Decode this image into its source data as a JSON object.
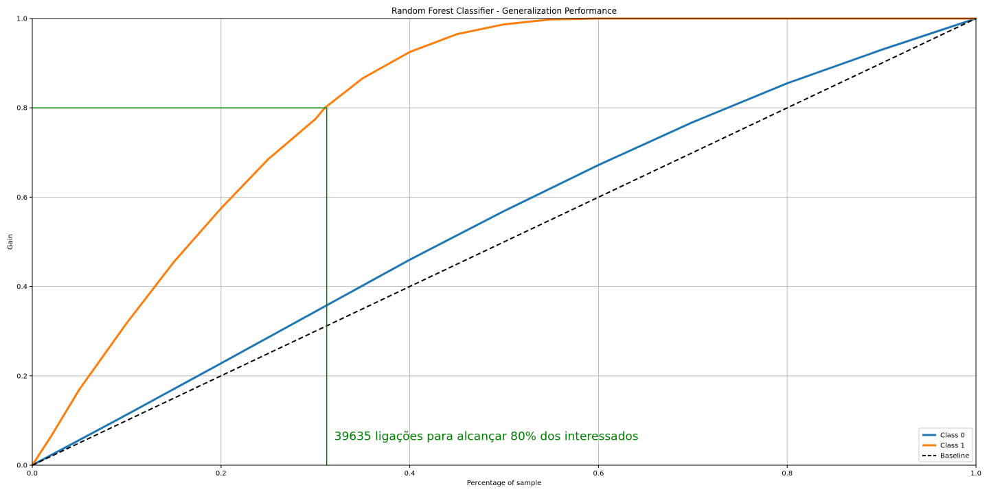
{
  "chart_data": {
    "type": "line",
    "title": "Random Forest Classifier - Generalization Performance",
    "xlabel": "Percentage of sample",
    "ylabel": "Gain",
    "xlim": [
      0,
      1
    ],
    "ylim": [
      0,
      1
    ],
    "grid": true,
    "xticks": [
      0.0,
      0.2,
      0.4,
      0.6,
      0.8,
      1.0
    ],
    "yticks": [
      0.0,
      0.2,
      0.4,
      0.6,
      0.8,
      1.0
    ],
    "xtick_labels": [
      "0.0",
      "0.2",
      "0.4",
      "0.6",
      "0.8",
      "1.0"
    ],
    "ytick_labels": [
      "0.0",
      "0.2",
      "0.4",
      "0.6",
      "0.8",
      "1.0"
    ],
    "legend_position": "bottom-right",
    "series": [
      {
        "name": "Class 0",
        "color": "#1f77b4",
        "style": "solid",
        "x": [
          0.0,
          0.1,
          0.2,
          0.3,
          0.4,
          0.5,
          0.6,
          0.7,
          0.8,
          0.9,
          1.0
        ],
        "y": [
          0.0,
          0.113,
          0.228,
          0.344,
          0.46,
          0.569,
          0.672,
          0.768,
          0.855,
          0.93,
          1.0
        ]
      },
      {
        "name": "Class 1",
        "color": "#ff7f0e",
        "style": "solid",
        "x": [
          0.0,
          0.02,
          0.05,
          0.1,
          0.15,
          0.2,
          0.25,
          0.3,
          0.31,
          0.35,
          0.4,
          0.45,
          0.5,
          0.55,
          0.6,
          1.0
        ],
        "y": [
          0.0,
          0.065,
          0.17,
          0.318,
          0.455,
          0.575,
          0.685,
          0.775,
          0.8,
          0.866,
          0.925,
          0.965,
          0.987,
          0.998,
          1.0,
          1.0
        ]
      },
      {
        "name": "Baseline",
        "color": "#000000",
        "style": "dashed",
        "x": [
          0.0,
          1.0
        ],
        "y": [
          0.0,
          1.0
        ]
      }
    ],
    "annotations": [
      {
        "kind": "guide-lines",
        "x": 0.312,
        "y": 0.8,
        "color": "#008000"
      },
      {
        "kind": "text",
        "text": "39635 ligações para alcançar 80% dos interessados",
        "x": 0.32,
        "y": 0.05,
        "color": "#008000"
      }
    ]
  }
}
